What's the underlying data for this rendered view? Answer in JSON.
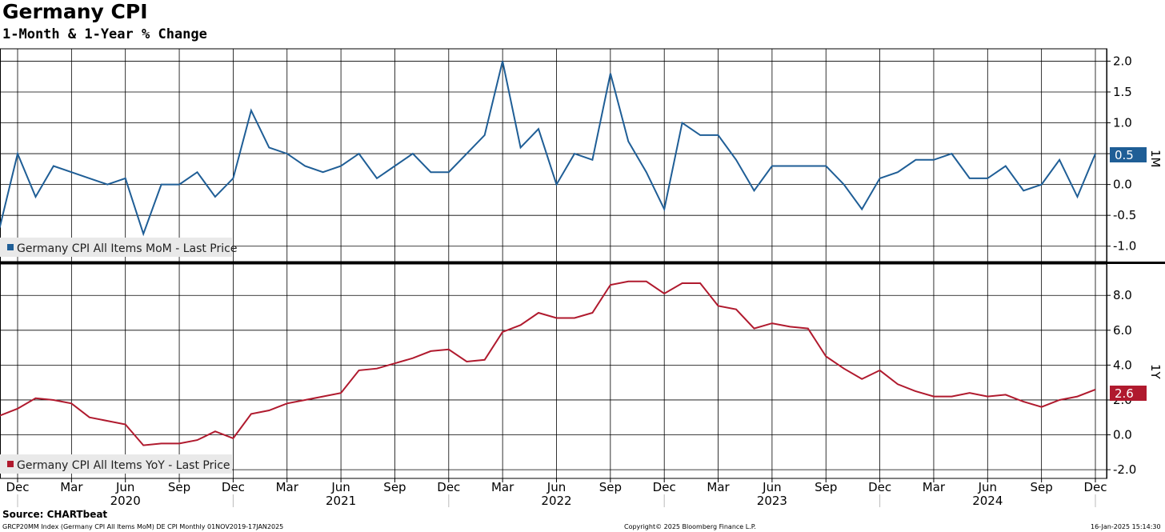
{
  "title": "Germany CPI",
  "subtitle": "1-Month & 1-Year % Change",
  "source": "Source: CHARTbeat",
  "footer": {
    "left": "GRCP20MM Index (Germany CPI All Items MoM) DE CPI  Monthly 01NOV2019-17JAN2025",
    "center": "Copyright© 2025 Bloomberg Finance L.P.",
    "right": "16-Jan-2025 15:14:30"
  },
  "chart_data": [
    {
      "type": "line",
      "panel": "top",
      "axis_title": "1M",
      "ylim": [
        -1.25,
        2.2
      ],
      "yticks": [
        "2.0",
        "1.5",
        "1.0",
        "0.5",
        "0.0",
        "-0.5",
        "-1.0"
      ],
      "ytick_values": [
        2.0,
        1.5,
        1.0,
        0.5,
        0.0,
        -0.5,
        -1.0
      ],
      "grid": true,
      "legend_position": "bottom-left",
      "last_value_label": "0.5",
      "series": [
        {
          "name": "Germany CPI All Items MoM - Last Price",
          "color": "#1f5e96",
          "x": [
            "2019-11",
            "2019-12",
            "2020-01",
            "2020-02",
            "2020-03",
            "2020-04",
            "2020-05",
            "2020-06",
            "2020-07",
            "2020-08",
            "2020-09",
            "2020-10",
            "2020-11",
            "2020-12",
            "2021-01",
            "2021-02",
            "2021-03",
            "2021-04",
            "2021-05",
            "2021-06",
            "2021-07",
            "2021-08",
            "2021-09",
            "2021-10",
            "2021-11",
            "2021-12",
            "2022-01",
            "2022-02",
            "2022-03",
            "2022-04",
            "2022-05",
            "2022-06",
            "2022-07",
            "2022-08",
            "2022-09",
            "2022-10",
            "2022-11",
            "2022-12",
            "2023-01",
            "2023-02",
            "2023-03",
            "2023-04",
            "2023-05",
            "2023-06",
            "2023-07",
            "2023-08",
            "2023-09",
            "2023-10",
            "2023-11",
            "2023-12",
            "2024-01",
            "2024-02",
            "2024-03",
            "2024-04",
            "2024-05",
            "2024-06",
            "2024-07",
            "2024-08",
            "2024-09",
            "2024-10",
            "2024-11",
            "2024-12"
          ],
          "values": [
            -0.7,
            0.5,
            -0.2,
            0.3,
            0.2,
            0.1,
            0.0,
            0.1,
            -0.8,
            0.0,
            0.0,
            0.2,
            -0.2,
            0.1,
            1.2,
            0.6,
            0.5,
            0.3,
            0.2,
            0.3,
            0.5,
            0.1,
            0.3,
            0.5,
            0.2,
            0.2,
            0.5,
            0.8,
            2.0,
            0.6,
            0.9,
            0.0,
            0.5,
            0.4,
            1.8,
            0.7,
            0.2,
            -0.4,
            1.0,
            0.8,
            0.8,
            0.4,
            -0.1,
            0.3,
            0.3,
            0.3,
            0.3,
            0.0,
            -0.4,
            0.1,
            0.2,
            0.4,
            0.4,
            0.5,
            0.1,
            0.1,
            0.3,
            -0.1,
            0.0,
            0.4,
            -0.2,
            0.5
          ]
        }
      ]
    },
    {
      "type": "line",
      "panel": "bottom",
      "axis_title": "1Y",
      "ylim": [
        -2.5,
        9.8
      ],
      "yticks": [
        "8.0",
        "6.0",
        "4.0",
        "2.0",
        "0.0",
        "-2.0"
      ],
      "ytick_values": [
        8.0,
        6.0,
        4.0,
        2.0,
        0.0,
        -2.0
      ],
      "grid": true,
      "legend_position": "bottom-left",
      "last_value_label": "2.6",
      "series": [
        {
          "name": "Germany CPI All Items YoY - Last Price",
          "color": "#b01a2e",
          "x": [
            "2019-11",
            "2019-12",
            "2020-01",
            "2020-02",
            "2020-03",
            "2020-04",
            "2020-05",
            "2020-06",
            "2020-07",
            "2020-08",
            "2020-09",
            "2020-10",
            "2020-11",
            "2020-12",
            "2021-01",
            "2021-02",
            "2021-03",
            "2021-04",
            "2021-05",
            "2021-06",
            "2021-07",
            "2021-08",
            "2021-09",
            "2021-10",
            "2021-11",
            "2021-12",
            "2022-01",
            "2022-02",
            "2022-03",
            "2022-04",
            "2022-05",
            "2022-06",
            "2022-07",
            "2022-08",
            "2022-09",
            "2022-10",
            "2022-11",
            "2022-12",
            "2023-01",
            "2023-02",
            "2023-03",
            "2023-04",
            "2023-05",
            "2023-06",
            "2023-07",
            "2023-08",
            "2023-09",
            "2023-10",
            "2023-11",
            "2023-12",
            "2024-01",
            "2024-02",
            "2024-03",
            "2024-04",
            "2024-05",
            "2024-06",
            "2024-07",
            "2024-08",
            "2024-09",
            "2024-10",
            "2024-11",
            "2024-12"
          ],
          "values": [
            1.1,
            1.5,
            2.1,
            2.0,
            1.8,
            1.0,
            0.8,
            0.6,
            -0.6,
            -0.5,
            -0.5,
            -0.3,
            0.2,
            -0.2,
            1.2,
            1.4,
            1.8,
            2.0,
            2.2,
            2.4,
            3.7,
            3.8,
            4.1,
            4.4,
            4.8,
            4.9,
            4.2,
            4.3,
            5.9,
            6.3,
            7.0,
            6.7,
            6.7,
            7.0,
            8.6,
            8.8,
            8.8,
            8.1,
            8.7,
            8.7,
            7.4,
            7.2,
            6.1,
            6.4,
            6.2,
            6.1,
            4.5,
            3.8,
            3.2,
            3.7,
            2.9,
            2.5,
            2.2,
            2.2,
            2.4,
            2.2,
            2.3,
            1.9,
            1.6,
            2.0,
            2.2,
            2.6
          ]
        }
      ]
    }
  ],
  "x_axis": {
    "month_labels": [
      "Dec",
      "Mar",
      "Jun",
      "Sep",
      "Dec",
      "Mar",
      "Jun",
      "Sep",
      "Dec",
      "Mar",
      "Jun",
      "Sep",
      "Dec",
      "Mar",
      "Jun",
      "Sep",
      "Dec",
      "Mar",
      "Jun",
      "Sep",
      "Dec"
    ],
    "year_labels": [
      "2020",
      "2021",
      "2022",
      "2023",
      "2024"
    ]
  },
  "colors": {
    "mom": "#1f5e96",
    "yoy": "#b01a2e",
    "grid": "#000000"
  }
}
